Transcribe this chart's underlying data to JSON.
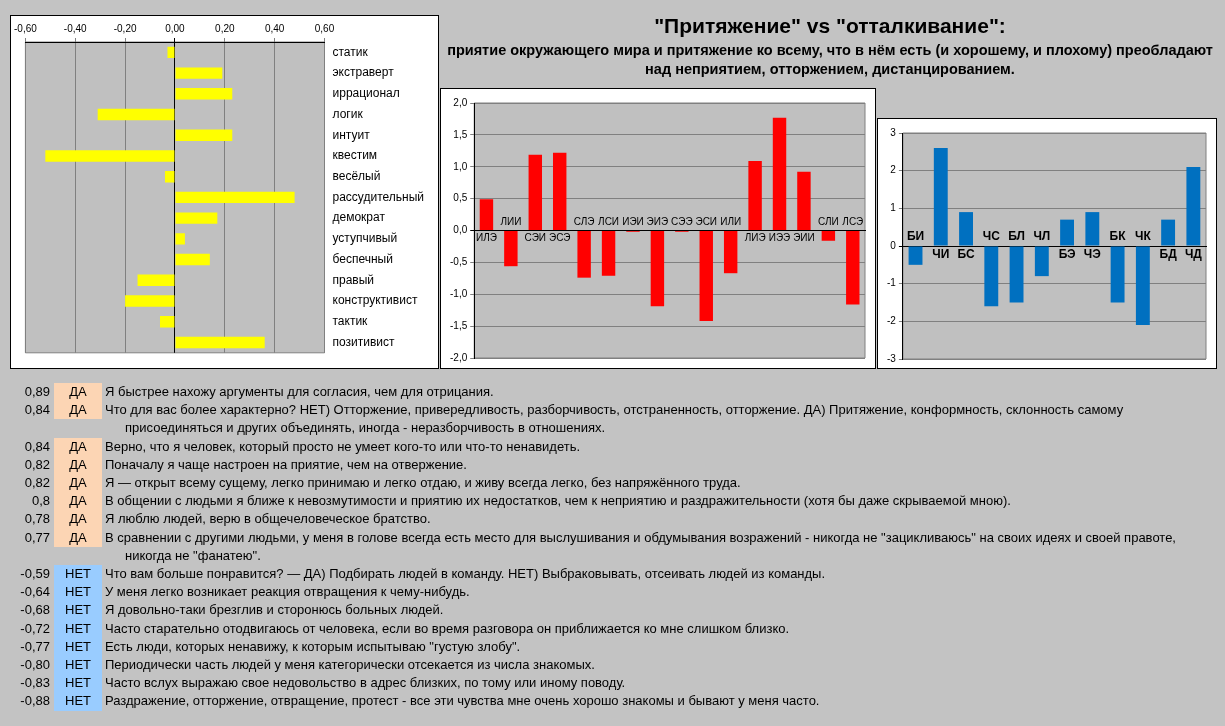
{
  "chart_data": [
    {
      "type": "bar",
      "orientation": "horizontal",
      "categories": [
        "статик",
        "экстраверт",
        "иррационал",
        "логик",
        "интуит",
        "квестим",
        "весёлый",
        "рассудительный",
        "демократ",
        "уступчивый",
        "беспечный",
        "правый",
        "конструктивист",
        "тактик",
        "позитивист"
      ],
      "values": [
        -0.03,
        0.19,
        0.23,
        -0.31,
        0.23,
        -0.52,
        -0.04,
        0.48,
        0.17,
        0.04,
        0.14,
        -0.15,
        -0.2,
        -0.06,
        0.36
      ],
      "color": "#ffff00",
      "xlim": [
        -0.6,
        0.6
      ],
      "xticks": [
        {
          "value": -0.6,
          "label": "-0,60"
        },
        {
          "value": -0.4,
          "label": "-0,40"
        },
        {
          "value": -0.2,
          "label": "-0,20"
        },
        {
          "value": 0,
          "label": "0,00"
        },
        {
          "value": 0.2,
          "label": "0,20"
        },
        {
          "value": 0.4,
          "label": "0,40"
        },
        {
          "value": 0.6,
          "label": "0,60"
        }
      ],
      "grid": "x",
      "legend": false
    },
    {
      "type": "bar",
      "categories": [
        "ИЛЭ",
        "ЛИИ",
        "СЭИ",
        "ЭСЭ",
        "СЛЭ",
        "ЛСИ",
        "ИЭИ",
        "ЭИЭ",
        "СЭЭ",
        "ЭСИ",
        "ИЛИ",
        "ЛИЭ",
        "ИЭЭ",
        "ЭИИ",
        "СЛИ",
        "ЛСЭ"
      ],
      "values": [
        0.49,
        -0.56,
        1.19,
        1.22,
        -0.74,
        -0.71,
        -0.02,
        -1.19,
        -0.02,
        -1.42,
        -0.67,
        1.09,
        1.77,
        0.92,
        -0.16,
        -1.16
      ],
      "color": "#ff0000",
      "ylim": [
        -2,
        2
      ],
      "yticks": [
        {
          "value": -2,
          "label": "-2,0"
        },
        {
          "value": -1.5,
          "label": "-1,5"
        },
        {
          "value": -1,
          "label": "-1,0"
        },
        {
          "value": -0.5,
          "label": "-0,5"
        },
        {
          "value": 0,
          "label": "0,0"
        },
        {
          "value": 0.5,
          "label": "0,5"
        },
        {
          "value": 1,
          "label": "1,0"
        },
        {
          "value": 1.5,
          "label": "1,5"
        },
        {
          "value": 2,
          "label": "2,0"
        }
      ],
      "grid": "y",
      "legend": false
    },
    {
      "type": "bar",
      "categories": [
        "БИ",
        "ЧИ",
        "БС",
        "ЧС",
        "БЛ",
        "ЧЛ",
        "БЭ",
        "ЧЭ",
        "БК",
        "ЧК",
        "БД",
        "ЧД"
      ],
      "values": [
        -0.5,
        2.6,
        0.9,
        -1.6,
        -1.5,
        -0.8,
        0.7,
        0.9,
        -1.5,
        -2.1,
        0.7,
        2.1
      ],
      "color": "#0070c0",
      "ylim": [
        -3,
        3
      ],
      "yticks": [
        -3,
        -2,
        -1,
        0,
        1,
        2,
        3
      ],
      "grid": "y",
      "legend": false
    },
    {
      "type": "other",
      "title": "\"Притяжение\" vs \"отталкивание\":",
      "subtitle": "приятие окружающего мира и притяжение ко всему, что в нём есть (и хорошему, и плохому) преобладают над неприятием, отторжением, дистанцированием."
    },
    {
      "type": "other",
      "categories": [
        "ДА",
        "ДА",
        "ДА",
        "ДА",
        "ДА",
        "ДА",
        "ДА",
        "ДА",
        "НЕТ",
        "НЕТ",
        "НЕТ",
        "НЕТ",
        "НЕТ",
        "НЕТ",
        "НЕТ",
        "НЕТ"
      ],
      "values": [
        0.89,
        0.84,
        0.84,
        0.82,
        0.82,
        0.8,
        0.78,
        0.77,
        -0.59,
        -0.64,
        -0.68,
        -0.72,
        -0.77,
        -0.8,
        -0.83,
        -0.88
      ],
      "value_labels": [
        "0,89",
        "0,84",
        "0,84",
        "0,82",
        "0,82",
        "0,8",
        "0,78",
        "0,77",
        "-0,59",
        "-0,64",
        "-0,68",
        "-0,72",
        "-0,77",
        "-0,80",
        "-0,83",
        "-0,88"
      ],
      "colors": [
        "#fcd5b4",
        "#fcd5b4",
        "#fcd5b4",
        "#fcd5b4",
        "#fcd5b4",
        "#fcd5b4",
        "#fcd5b4",
        "#fcd5b4",
        "#99ccff",
        "#99ccff",
        "#99ccff",
        "#99ccff",
        "#99ccff",
        "#99ccff",
        "#99ccff",
        "#99ccff"
      ],
      "annotations": [
        "Я быстрее нахожу аргументы для согласия, чем для отрицания.",
        "Что для вас более характерно?  НЕТ) Отторжение, привередливость, разборчивость, отстраненность, отторжение.  ДА) Притяжение, конформность, склонность самому присоединяться и других объединять, иногда - неразборчивость в отношениях.",
        "Верно, что я человек, который просто не умеет кого-то или что-то ненавидеть.",
        "Поначалу я чаще настроен на приятие, чем на отвержение.",
        "Я — открыт всему сущему, легко принимаю и легко отдаю, и живу всегда легко, без напряжённого труда.",
        "В общении с людьми я ближе к невозмутимости и приятию их недостатков, чем к неприятию и раздражительности (хотя бы даже скрываемой мною).",
        "Я люблю людей, верю в общечеловеческое братство.",
        "В сравнении с другими людьми, у меня в голове всегда есть место для выслушивания и обдумывания возражений - никогда не \"зацикливаюсь\" на своих идеях и своей правоте, никогда не \"фанатею\".",
        "Что вам больше понравится? — ДА) Подбирать людей в команду. НЕТ) Выбраковывать, отсеивать людей из команды.",
        "У меня легко возникает реакция отвращения к чему-нибудь.",
        "Я довольно-таки брезглив и сторонюсь больных людей.",
        "Часто старательно отодвигаюсь от человека, если во время разговора он приближается ко мне слишком близко.",
        "Есть люди, которых ненавижу, к которым испытываю \"густую злобу\".",
        "Периодически часть людей у меня категорически отсекается из числа знакомых.",
        "Часто вслух выражаю свое недовольство в адрес близких, по тому или иному поводу.",
        "Раздражение, отторжение, отвращение, протест - все эти чувства мне очень хорошо знакомы и бывают у меня часто."
      ]
    }
  ]
}
